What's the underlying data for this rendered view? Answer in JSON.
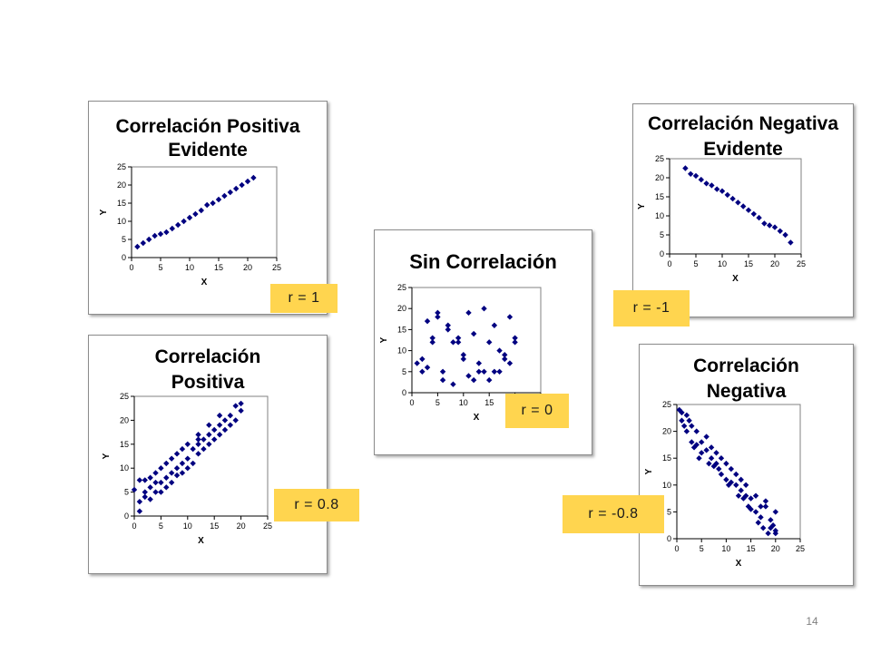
{
  "page_number": "14",
  "colors": {
    "marker": "#000080",
    "label_bg": "#ffd54f"
  },
  "r_labels": {
    "pos_evident": "r = 1",
    "neg_evident": "r = -1",
    "none": "r = 0",
    "pos": "r = 0.8",
    "neg": "r = -0.8"
  },
  "chart_data": [
    {
      "id": "pos_evident",
      "type": "scatter",
      "title": [
        "Correlación Positiva",
        "Evidente"
      ],
      "xlabel": "X",
      "ylabel": "Y",
      "xlim": [
        0,
        25
      ],
      "ylim": [
        0,
        25
      ],
      "xticks": [
        "0",
        "5",
        "10",
        "15",
        "20",
        "25"
      ],
      "yticks": [
        "0",
        "5",
        "10",
        "15",
        "20",
        "25"
      ],
      "grid": false,
      "legend": "none",
      "points": [
        [
          1,
          3
        ],
        [
          2,
          4
        ],
        [
          3,
          5
        ],
        [
          4,
          6
        ],
        [
          5,
          6.5
        ],
        [
          6,
          7
        ],
        [
          7,
          8
        ],
        [
          8,
          9
        ],
        [
          9,
          10
        ],
        [
          10,
          11
        ],
        [
          11,
          12
        ],
        [
          12,
          13
        ],
        [
          13,
          14.5
        ],
        [
          14,
          15
        ],
        [
          15,
          16
        ],
        [
          16,
          17
        ],
        [
          17,
          18
        ],
        [
          18,
          19
        ],
        [
          19,
          20
        ],
        [
          20,
          21
        ],
        [
          21,
          22
        ]
      ]
    },
    {
      "id": "pos",
      "type": "scatter",
      "title": [
        "Correlación",
        "Positiva"
      ],
      "xlabel": "X",
      "ylabel": "Y",
      "xlim": [
        0,
        25
      ],
      "ylim": [
        0,
        25
      ],
      "xticks": [
        "0",
        "5",
        "10",
        "15",
        "20",
        "25"
      ],
      "yticks": [
        "0",
        "5",
        "10",
        "15",
        "20",
        "25"
      ],
      "grid": false,
      "legend": "none",
      "points": [
        [
          0,
          5.5
        ],
        [
          1,
          1
        ],
        [
          1,
          3
        ],
        [
          1,
          7.5
        ],
        [
          2,
          4
        ],
        [
          2,
          5
        ],
        [
          2,
          7.5
        ],
        [
          3,
          3.5
        ],
        [
          3,
          6
        ],
        [
          3,
          8
        ],
        [
          4,
          5
        ],
        [
          4,
          7
        ],
        [
          4,
          9
        ],
        [
          5,
          5
        ],
        [
          5,
          7
        ],
        [
          5,
          10
        ],
        [
          6,
          6
        ],
        [
          6,
          8
        ],
        [
          6,
          11
        ],
        [
          7,
          7
        ],
        [
          7,
          9
        ],
        [
          7,
          12
        ],
        [
          8,
          8.5
        ],
        [
          8,
          10
        ],
        [
          8,
          13
        ],
        [
          9,
          9
        ],
        [
          9,
          11
        ],
        [
          9,
          14
        ],
        [
          10,
          10
        ],
        [
          10,
          12
        ],
        [
          10,
          15
        ],
        [
          11,
          11
        ],
        [
          11,
          14
        ],
        [
          12,
          13
        ],
        [
          12,
          15
        ],
        [
          12,
          17
        ],
        [
          13,
          14
        ],
        [
          13,
          16
        ],
        [
          14,
          15
        ],
        [
          14,
          17
        ],
        [
          14,
          19
        ],
        [
          15,
          16
        ],
        [
          15,
          18
        ],
        [
          16,
          17
        ],
        [
          16,
          19
        ],
        [
          17,
          18
        ],
        [
          17,
          20
        ],
        [
          18,
          19
        ],
        [
          18,
          21
        ],
        [
          19,
          20
        ],
        [
          19,
          23
        ],
        [
          20,
          22
        ],
        [
          20,
          23.5
        ],
        [
          16,
          21
        ],
        [
          12,
          16
        ]
      ]
    },
    {
      "id": "none",
      "type": "scatter",
      "title": [
        "Sin Correlación"
      ],
      "xlabel": "X",
      "ylabel": "Y",
      "xlim": [
        0,
        25
      ],
      "ylim": [
        0,
        25
      ],
      "xticks": [
        "0",
        "5",
        "10",
        "15",
        "20",
        "25"
      ],
      "yticks": [
        "0",
        "5",
        "10",
        "15",
        "20",
        "25"
      ],
      "grid": false,
      "legend": "none",
      "points": [
        [
          1,
          7
        ],
        [
          2,
          5
        ],
        [
          2,
          8
        ],
        [
          3,
          6
        ],
        [
          3,
          17
        ],
        [
          4,
          12
        ],
        [
          4,
          13
        ],
        [
          5,
          18
        ],
        [
          5,
          19
        ],
        [
          6,
          3
        ],
        [
          6,
          5
        ],
        [
          7,
          15
        ],
        [
          7,
          16
        ],
        [
          8,
          2
        ],
        [
          8,
          12
        ],
        [
          9,
          12
        ],
        [
          9,
          13
        ],
        [
          10,
          8
        ],
        [
          10,
          9
        ],
        [
          11,
          4
        ],
        [
          11,
          19
        ],
        [
          12,
          14
        ],
        [
          12,
          3
        ],
        [
          13,
          7
        ],
        [
          13,
          5
        ],
        [
          14,
          20
        ],
        [
          14,
          5
        ],
        [
          15,
          12
        ],
        [
          15,
          3
        ],
        [
          16,
          16
        ],
        [
          16,
          5
        ],
        [
          17,
          5
        ],
        [
          17,
          10
        ],
        [
          18,
          8
        ],
        [
          18,
          9
        ],
        [
          19,
          18
        ],
        [
          19,
          7
        ],
        [
          20,
          12
        ],
        [
          20,
          13
        ]
      ]
    },
    {
      "id": "neg_evident",
      "type": "scatter",
      "title": [
        "Correlación Negativa",
        "Evidente"
      ],
      "xlabel": "X",
      "ylabel": "Y",
      "xlim": [
        0,
        25
      ],
      "ylim": [
        0,
        25
      ],
      "xticks": [
        "0",
        "5",
        "10",
        "15",
        "20",
        "25"
      ],
      "yticks": [
        "0",
        "5",
        "10",
        "15",
        "20",
        "25"
      ],
      "grid": false,
      "legend": "none",
      "points": [
        [
          3,
          22.5
        ],
        [
          4,
          21
        ],
        [
          5,
          20.5
        ],
        [
          6,
          19.5
        ],
        [
          7,
          18.5
        ],
        [
          8,
          18
        ],
        [
          9,
          17
        ],
        [
          10,
          16.5
        ],
        [
          11,
          15.5
        ],
        [
          12,
          14.5
        ],
        [
          13,
          13.5
        ],
        [
          14,
          12.5
        ],
        [
          15,
          11.5
        ],
        [
          16,
          10.5
        ],
        [
          17,
          9.5
        ],
        [
          18,
          8
        ],
        [
          19,
          7.5
        ],
        [
          20,
          7
        ],
        [
          21,
          6
        ],
        [
          22,
          5
        ],
        [
          23,
          3
        ]
      ]
    },
    {
      "id": "neg",
      "type": "scatter",
      "title": [
        "Correlación",
        "Negativa"
      ],
      "xlabel": "X",
      "ylabel": "Y",
      "xlim": [
        0,
        25
      ],
      "ylim": [
        0,
        25
      ],
      "xticks": [
        "0",
        "5",
        "10",
        "15",
        "20",
        "25"
      ],
      "yticks": [
        "0",
        "5",
        "10",
        "15",
        "20",
        "25"
      ],
      "grid": false,
      "legend": "none",
      "points": [
        [
          0.5,
          24
        ],
        [
          1,
          23.5
        ],
        [
          1,
          22
        ],
        [
          1.5,
          21
        ],
        [
          2,
          23
        ],
        [
          2,
          20
        ],
        [
          2.5,
          22
        ],
        [
          3,
          18
        ],
        [
          3,
          21
        ],
        [
          3.5,
          17
        ],
        [
          4,
          20
        ],
        [
          4,
          17.5
        ],
        [
          4.5,
          15
        ],
        [
          5,
          18
        ],
        [
          5,
          16
        ],
        [
          6,
          19
        ],
        [
          6,
          16.5
        ],
        [
          6.5,
          14
        ],
        [
          7,
          17
        ],
        [
          7,
          15
        ],
        [
          7.5,
          13.5
        ],
        [
          8,
          16
        ],
        [
          8,
          14
        ],
        [
          8.5,
          13
        ],
        [
          9,
          15
        ],
        [
          9,
          12
        ],
        [
          10,
          14
        ],
        [
          10,
          11
        ],
        [
          10.5,
          10
        ],
        [
          11,
          13
        ],
        [
          11,
          10.5
        ],
        [
          12,
          10
        ],
        [
          12,
          12
        ],
        [
          12.5,
          8
        ],
        [
          13,
          11
        ],
        [
          13,
          9
        ],
        [
          13.5,
          7.5
        ],
        [
          14,
          10
        ],
        [
          14,
          8
        ],
        [
          14.5,
          6
        ],
        [
          15,
          5.5
        ],
        [
          15,
          7.5
        ],
        [
          16,
          8
        ],
        [
          16,
          5
        ],
        [
          16.5,
          3
        ],
        [
          17,
          6
        ],
        [
          17,
          4
        ],
        [
          17.5,
          2
        ],
        [
          18,
          7
        ],
        [
          18,
          6
        ],
        [
          18.5,
          1
        ],
        [
          19,
          3.5
        ],
        [
          19,
          2
        ],
        [
          20,
          1.5
        ],
        [
          20,
          5
        ],
        [
          20,
          1
        ],
        [
          19.5,
          2.5
        ]
      ]
    }
  ]
}
